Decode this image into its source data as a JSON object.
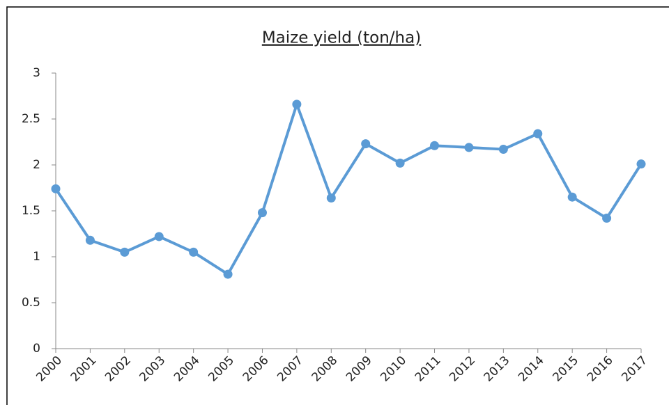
{
  "chart_data": {
    "type": "line",
    "title": "Maize yield (ton/ha)",
    "categories": [
      "2000",
      "2001",
      "2002",
      "2003",
      "2004",
      "2005",
      "2006",
      "2007",
      "2008",
      "2009",
      "2010",
      "2011",
      "2012",
      "2013",
      "2014",
      "2015",
      "2016",
      "2017"
    ],
    "series": [
      {
        "name": "Maize yield",
        "color": "#5b9bd5",
        "values": [
          1.74,
          1.18,
          1.05,
          1.22,
          1.05,
          0.81,
          1.48,
          2.66,
          1.64,
          2.23,
          2.02,
          2.21,
          2.19,
          2.17,
          2.34,
          1.65,
          1.42,
          2.01
        ]
      }
    ],
    "ylim": [
      0,
      3
    ],
    "yticks": [
      0,
      0.5,
      1,
      1.5,
      2,
      2.5,
      3
    ],
    "grid": false
  }
}
